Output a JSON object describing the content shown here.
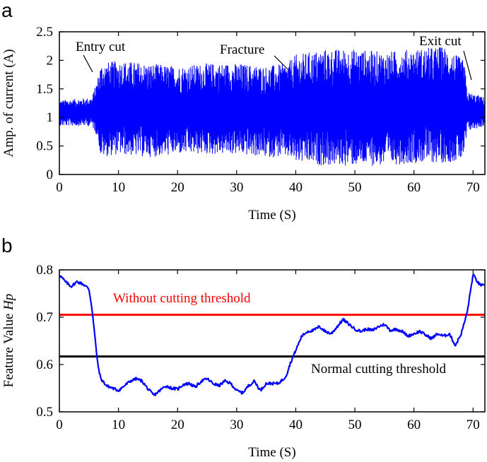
{
  "colors": {
    "signal": "#0000ff",
    "threshold_high": "#ff0000",
    "threshold_low": "#000000",
    "axis": "#000000"
  },
  "chart_data": [
    {
      "type": "line",
      "panel_label": "a",
      "xlabel": "Time (S)",
      "ylabel": "Amp. of current (A)",
      "xlim": [
        0,
        72
      ],
      "ylim": [
        0,
        2.5
      ],
      "xticks": [
        0,
        10,
        20,
        30,
        40,
        50,
        60,
        70
      ],
      "yticks": [
        0,
        0.5,
        1,
        1.5,
        2,
        2.5
      ],
      "series": [
        {
          "envelope": {
            "x": [
              0,
              5.5,
              6.5,
              7,
              10,
              15,
              20,
              25,
              30,
              35,
              38.5,
              40,
              45,
              50,
              55,
              60,
              65,
              68.5,
              69,
              72
            ],
            "upper": [
              1.3,
              1.35,
              1.7,
              1.95,
              2.0,
              1.95,
              1.9,
              1.95,
              1.95,
              1.9,
              1.95,
              2.1,
              2.2,
              2.2,
              2.15,
              2.2,
              2.25,
              2.0,
              1.45,
              1.35
            ],
            "lower": [
              0.85,
              0.85,
              0.65,
              0.3,
              0.35,
              0.3,
              0.35,
              0.35,
              0.35,
              0.3,
              0.3,
              0.2,
              0.15,
              0.15,
              0.15,
              0.2,
              0.2,
              0.25,
              0.75,
              0.85
            ]
          }
        }
      ],
      "annotations": [
        {
          "text": "Entry cut",
          "x": 6.2,
          "y": 1.75
        },
        {
          "text": "Fracture",
          "x": 38.8,
          "y": 1.8
        },
        {
          "text": "Exit cut",
          "x": 69.2,
          "y": 1.6
        }
      ]
    },
    {
      "type": "line",
      "panel_label": "b",
      "xlabel": "Time (S)",
      "ylabel_main": "Feature Value ",
      "ylabel_sym": "Hp",
      "xlim": [
        0,
        72
      ],
      "ylim": [
        0.5,
        0.8
      ],
      "xticks": [
        0,
        10,
        20,
        30,
        40,
        50,
        60,
        70
      ],
      "yticks": [
        0.5,
        0.6,
        0.7,
        0.8
      ],
      "series": [
        {
          "x": [
            0,
            1,
            2,
            3,
            4,
            5,
            5.5,
            6,
            6.5,
            7,
            8,
            9,
            10,
            11,
            12,
            13,
            14,
            15,
            16,
            17,
            18,
            19,
            20,
            21,
            22,
            23,
            24,
            25,
            26,
            27,
            28,
            29,
            30,
            31,
            32,
            33,
            34,
            35,
            36,
            37,
            38,
            38.5,
            39,
            40,
            41,
            42,
            43,
            44,
            45,
            46,
            47,
            48,
            49,
            50,
            51,
            52,
            53,
            54,
            55,
            56,
            57,
            58,
            59,
            60,
            61,
            62,
            63,
            64,
            65,
            66,
            67,
            68,
            69,
            70,
            71,
            72
          ],
          "y": [
            0.79,
            0.775,
            0.765,
            0.775,
            0.77,
            0.76,
            0.72,
            0.66,
            0.6,
            0.57,
            0.555,
            0.55,
            0.545,
            0.555,
            0.565,
            0.57,
            0.565,
            0.548,
            0.535,
            0.545,
            0.555,
            0.55,
            0.548,
            0.558,
            0.56,
            0.552,
            0.565,
            0.57,
            0.56,
            0.555,
            0.565,
            0.56,
            0.545,
            0.54,
            0.555,
            0.565,
            0.545,
            0.56,
            0.56,
            0.56,
            0.57,
            0.58,
            0.6,
            0.63,
            0.66,
            0.67,
            0.672,
            0.68,
            0.67,
            0.665,
            0.68,
            0.695,
            0.685,
            0.675,
            0.67,
            0.675,
            0.672,
            0.68,
            0.685,
            0.672,
            0.675,
            0.67,
            0.66,
            0.665,
            0.67,
            0.662,
            0.655,
            0.665,
            0.66,
            0.665,
            0.64,
            0.665,
            0.71,
            0.79,
            0.77,
            0.765
          ]
        }
      ],
      "thresholds": [
        {
          "label": "Without cutting threshold",
          "y": 0.705,
          "color": "#ff0000"
        },
        {
          "label": "Normal cutting threshold",
          "y": 0.617,
          "color": "#000000"
        }
      ]
    }
  ]
}
